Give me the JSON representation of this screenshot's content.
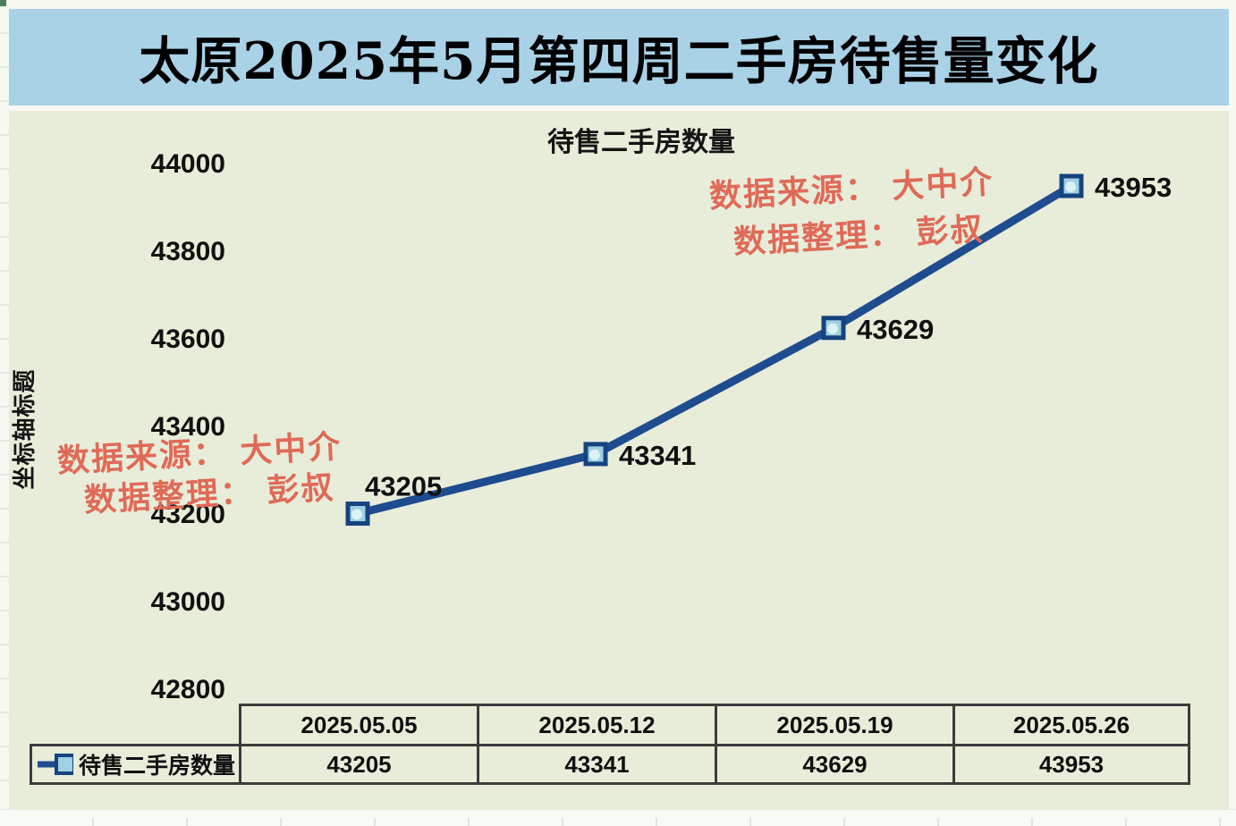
{
  "page": {
    "title": "太原2025年5月第四周二手房待售量变化"
  },
  "chart_data": {
    "type": "line",
    "title": "待售二手房数量",
    "y_axis_title": "坐标轴标题",
    "legend": "待售二手房数量",
    "legend_position": "bottom-left table cell",
    "categories": [
      "2025.05.05",
      "2025.05.12",
      "2025.05.19",
      "2025.05.26"
    ],
    "values": [
      43205,
      43341,
      43629,
      43953
    ],
    "yticks": [
      44000,
      43800,
      43600,
      43400,
      43200,
      43000,
      42800
    ],
    "ylim": [
      42800,
      44000
    ],
    "grid": "off",
    "colors": {
      "line": "#1f4c8f",
      "marker_fill": "#9ed2e3",
      "marker_border": "#16437f",
      "title_bar_bg": "#a9d2e7",
      "chart_bg": "#e8edda",
      "watermark_red": "#df6a57"
    }
  },
  "watermarks": {
    "top_right": {
      "line1": "数据来源： 大中介",
      "line2": "数据整理： 彭叔"
    },
    "bottom_left": {
      "line1": "数据来源： 大中介",
      "line2": "数据整理： 彭叔"
    }
  }
}
